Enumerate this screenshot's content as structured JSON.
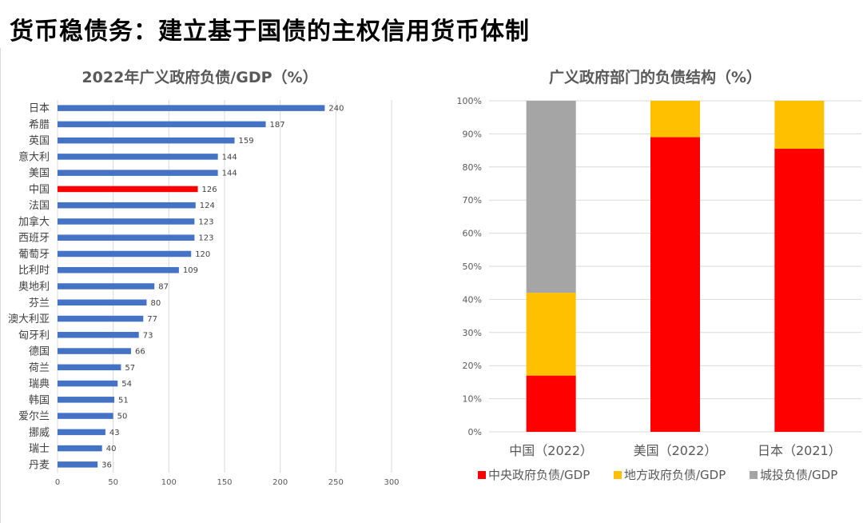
{
  "page": {
    "title": "货币稳债务：建立基于国债的主权信用货币体制"
  },
  "chart_data": [
    {
      "type": "bar",
      "orientation": "horizontal",
      "title": "2022年广义政府负债/GDP（%）",
      "categories": [
        "日本",
        "希腊",
        "英国",
        "意大利",
        "美国",
        "中国",
        "法国",
        "加拿大",
        "西班牙",
        "葡萄牙",
        "比利时",
        "奥地利",
        "芬兰",
        "澳大利亚",
        "匈牙利",
        "德国",
        "荷兰",
        "瑞典",
        "韩国",
        "爱尔兰",
        "挪威",
        "瑞士",
        "丹麦"
      ],
      "values": [
        240,
        187,
        159,
        144,
        144,
        126,
        124,
        123,
        123,
        120,
        109,
        87,
        80,
        77,
        73,
        66,
        57,
        54,
        51,
        50,
        43,
        40,
        36
      ],
      "highlight": "中国",
      "bar_color": "#4472c4",
      "highlight_color": "#ff0000",
      "xlim": [
        0,
        300
      ],
      "xticks": [
        0,
        50,
        100,
        150,
        200,
        250,
        300
      ],
      "grid": true
    },
    {
      "type": "bar",
      "stacked": true,
      "title": "广义政府部门的负债结构（%）",
      "categories": [
        "中国（2022）",
        "美国（2022）",
        "日本（2021）"
      ],
      "series": [
        {
          "name": "中央政府负债/GDP",
          "color": "#ff0000",
          "values": [
            17,
            89,
            85.5
          ]
        },
        {
          "name": "地方政府负债/GDP",
          "color": "#ffc000",
          "values": [
            25,
            11,
            14.5
          ]
        },
        {
          "name": "城投负债/GDP",
          "color": "#a5a5a5",
          "values": [
            58,
            0,
            0
          ]
        }
      ],
      "ylim": [
        0,
        100
      ],
      "yticks": [
        "0%",
        "10%",
        "20%",
        "30%",
        "40%",
        "50%",
        "60%",
        "70%",
        "80%",
        "90%",
        "100%"
      ],
      "legend_position": "bottom",
      "grid": true
    }
  ]
}
